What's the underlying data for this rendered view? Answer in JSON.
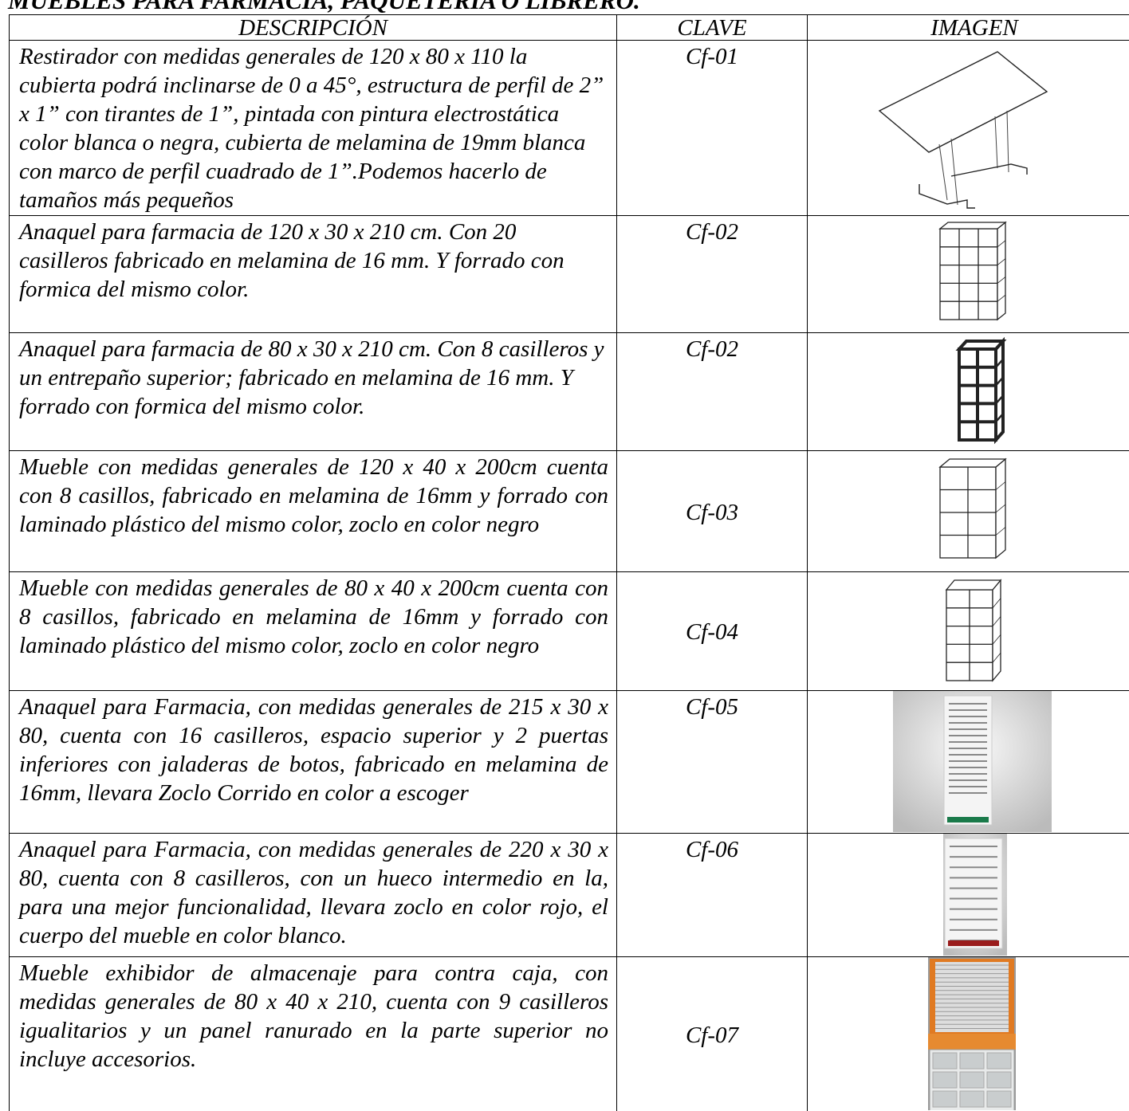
{
  "header": {
    "title": "MUEBLES PARA FARMACIA, PAQUETERIA O LIBRERO."
  },
  "table": {
    "columns": [
      "DESCRIPCIÓN",
      "CLAVE",
      "IMAGEN"
    ],
    "rows": [
      {
        "descripcion": "Restirador con medidas generales de 120 x 80 x 110 la cubierta podrá inclinarse de 0 a 45°, estructura de perfil de 2” x 1” con tirantes de 1”, pintada con pintura electrostática color blanca o negra, cubierta de melamina de 19mm blanca con marco de perfil cuadrado de 1”.Podemos hacerlo de tamaños más pequeños",
        "clave": "Cf-01"
      },
      {
        "descripcion": "Anaquel para farmacia de 120 x 30 x 210 cm. Con 20 casilleros fabricado en melamina de 16 mm. Y forrado con formica del mismo color.",
        "clave": "Cf-02"
      },
      {
        "descripcion": "Anaquel para farmacia de 80 x 30 x 210 cm. Con 8 casilleros y un entrepaño superior; fabricado en melamina de 16 mm. Y forrado con formica del mismo color.",
        "clave": "Cf-02"
      },
      {
        "descripcion": "Mueble con medidas generales de 120 x 40 x 200cm cuenta con 8 casillos, fabricado en melamina de 16mm y forrado con laminado plástico del mismo color, zoclo en color negro",
        "clave": "Cf-03"
      },
      {
        "descripcion": "Mueble con medidas generales de 80 x 40 x 200cm cuenta con 8 casillos, fabricado en melamina de 16mm y forrado con laminado plástico del mismo color, zoclo en color negro",
        "clave": "Cf-04"
      },
      {
        "descripcion": "Anaquel para Farmacia, con medidas generales de 215 x 30 x 80, cuenta con 16 casilleros, espacio superior y 2 puertas inferiores con jaladeras de botos, fabricado en melamina de 16mm, llevara Zoclo Corrido en color a escoger",
        "clave": "Cf-05"
      },
      {
        "descripcion": "Anaquel para Farmacia, con medidas generales de 220 x 30 x 80, cuenta con 8 casilleros, con un hueco intermedio en la, para una mejor funcionalidad, llevara zoclo en color rojo, el cuerpo del mueble en color blanco.",
        "clave": "Cf-06"
      },
      {
        "descripcion": "Mueble exhibidor de almacenaje para contra caja, con medidas generales de 80 x 40 x 210, cuenta con 9 casilleros igualitarios y un panel ranurado en la parte superior no incluye accesorios.",
        "clave": "Cf-07"
      }
    ]
  }
}
